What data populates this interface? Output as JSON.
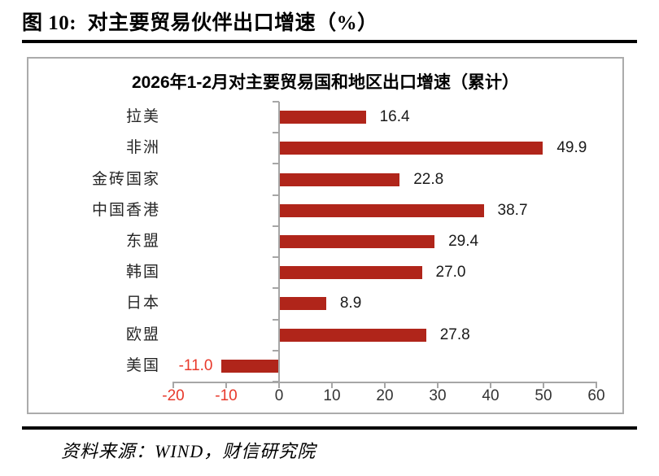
{
  "figure": {
    "title": "图 10:  对主要贸易伙伴出口增速（%）",
    "source": "资料来源：WIND，财信研究院"
  },
  "chart_data": {
    "type": "bar",
    "orientation": "horizontal",
    "title": "2026年1-2月对主要贸易国和地区出口增速（累计）",
    "categories": [
      "拉美",
      "非洲",
      "金砖国家",
      "中国香港",
      "东盟",
      "韩国",
      "日本",
      "欧盟",
      "美国"
    ],
    "values": [
      16.4,
      49.9,
      22.8,
      38.7,
      29.4,
      27.0,
      8.9,
      27.8,
      -11.0
    ],
    "value_labels": [
      "16.4",
      "49.9",
      "22.8",
      "38.7",
      "29.4",
      "27.0",
      "8.9",
      "27.8",
      "-11.0"
    ],
    "xlim": [
      -20,
      60
    ],
    "x_ticks": [
      -20,
      -10,
      0,
      10,
      20,
      30,
      40,
      50,
      60
    ],
    "x_tick_labels": [
      "-20",
      "-10",
      "0",
      "10",
      "20",
      "30",
      "40",
      "50",
      "60"
    ],
    "grid": false,
    "legend": null,
    "colors": {
      "bar": "#b0251a",
      "negative_text": "#e8392b",
      "axis": "#a6a6a6",
      "label_text": "#262626"
    }
  }
}
